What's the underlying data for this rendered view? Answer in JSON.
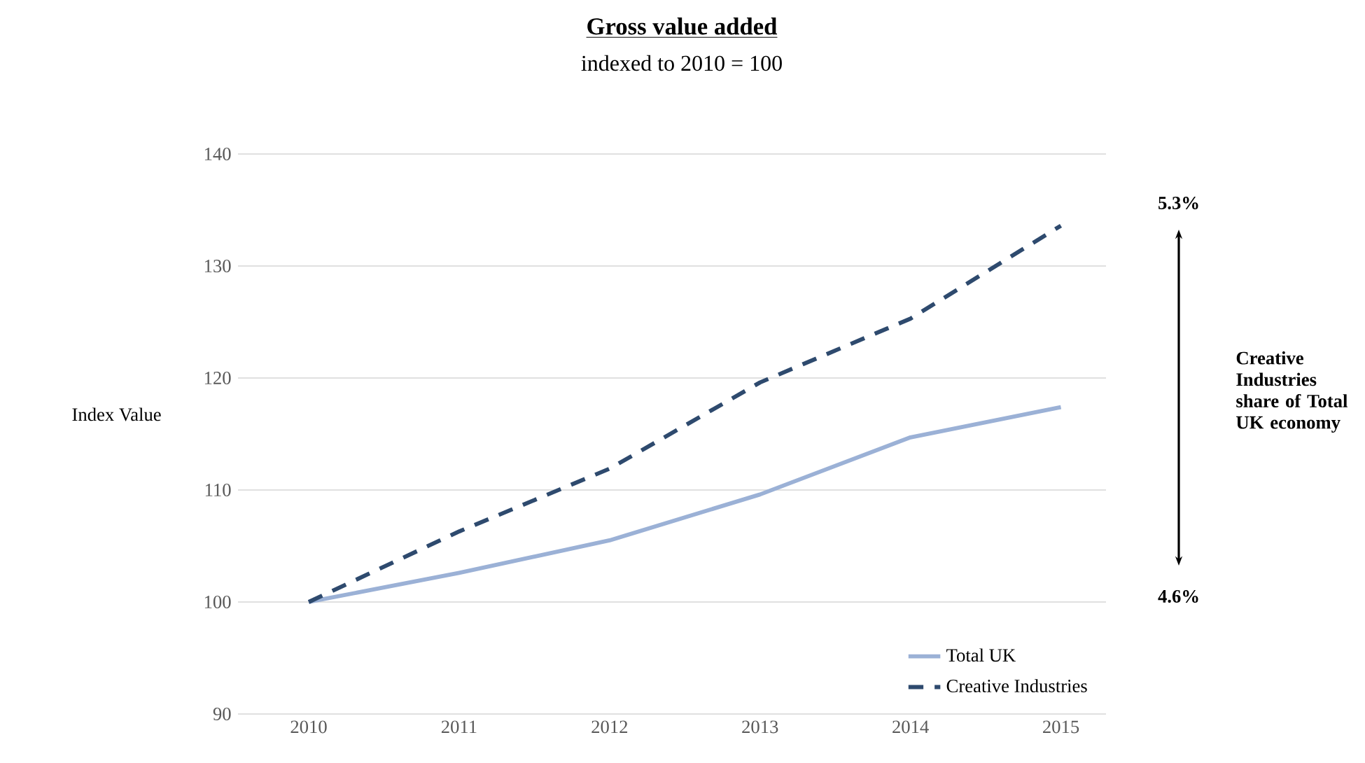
{
  "chart_data": {
    "type": "line",
    "title": "Gross value added",
    "subtitle": "indexed to 2010 = 100",
    "ylabel": "Index Value",
    "categories": [
      "2010",
      "2011",
      "2012",
      "2013",
      "2014",
      "2015"
    ],
    "series": [
      {
        "name": "Total UK",
        "color": "#9bb1d6",
        "line_style": "solid",
        "values": [
          100,
          102.6,
          105.5,
          109.6,
          114.7,
          117.4
        ]
      },
      {
        "name": "Creative Industries",
        "color": "#2e4a6e",
        "line_style": "dashed",
        "values": [
          100,
          106.3,
          111.9,
          119.6,
          125.3,
          133.6
        ]
      }
    ],
    "ylim": [
      90,
      140
    ],
    "yticks": [
      90,
      100,
      110,
      120,
      130,
      140
    ],
    "grid": "y",
    "legend": "bottom right",
    "marker": "none",
    "annotations": [
      "5.3%",
      "4.6%",
      "Creative Industries share of Total UK economy"
    ]
  }
}
